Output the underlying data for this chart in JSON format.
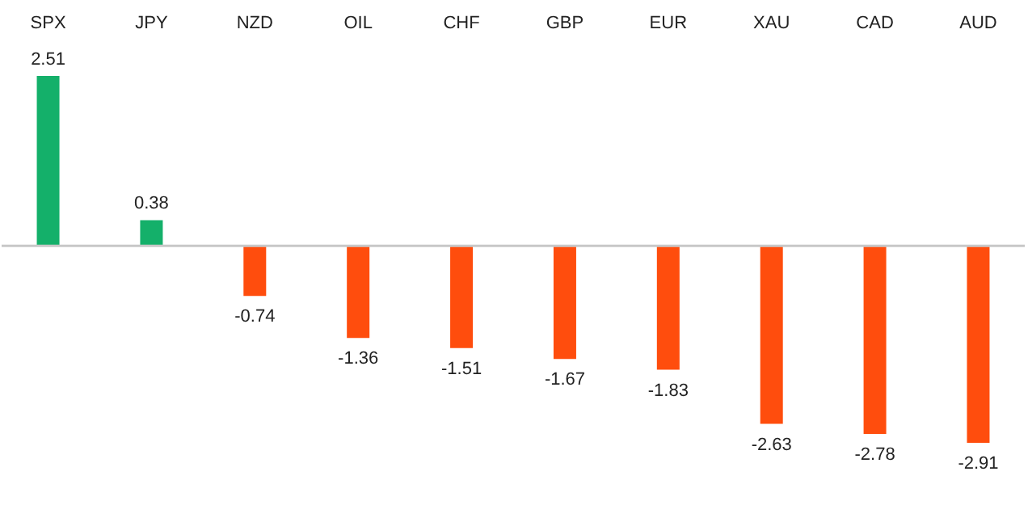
{
  "chart_data": {
    "type": "bar",
    "categories": [
      "SPX",
      "JPY",
      "NZD",
      "OIL",
      "CHF",
      "GBP",
      "EUR",
      "XAU",
      "CAD",
      "AUD"
    ],
    "values": [
      2.51,
      0.38,
      -0.74,
      -1.36,
      -1.51,
      -1.67,
      -1.83,
      -2.63,
      -2.78,
      -2.91
    ],
    "colors": [
      "#14b06a",
      "#14b06a",
      "#ff4d0d",
      "#ff4d0d",
      "#ff4d0d",
      "#ff4d0d",
      "#ff4d0d",
      "#ff4d0d",
      "#ff4d0d",
      "#ff4d0d"
    ],
    "data_labels": true,
    "grid": false
  }
}
